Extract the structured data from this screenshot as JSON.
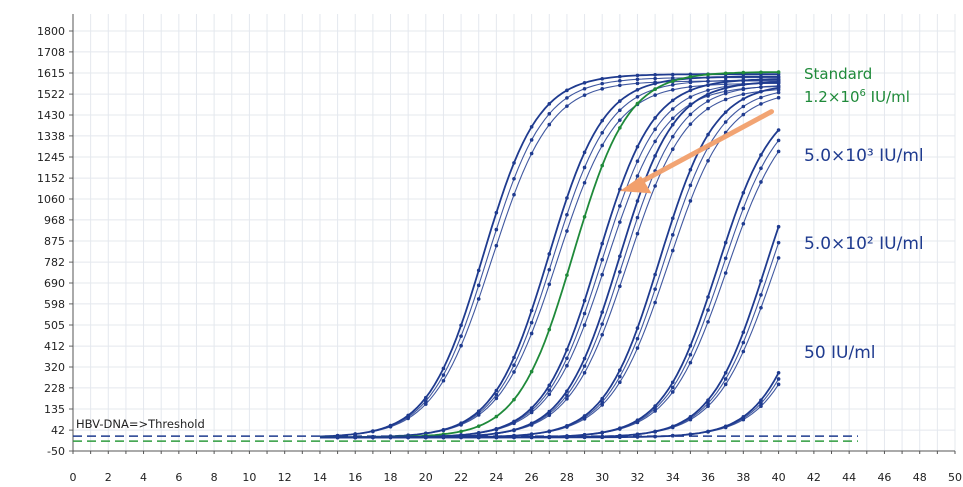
{
  "chart_data": {
    "type": "line",
    "title": "",
    "xlabel": "",
    "ylabel": "",
    "xlim": [
      0,
      50
    ],
    "ylim": [
      -50,
      1850
    ],
    "x_ticks": [
      "0",
      "2",
      "4",
      "6",
      "8",
      "10",
      "12",
      "14",
      "16",
      "18",
      "20",
      "22",
      "24",
      "26",
      "28",
      "30",
      "32",
      "34",
      "36",
      "38",
      "40",
      "42",
      "44",
      "46",
      "48",
      "50"
    ],
    "y_ticks": [
      "1800",
      "1708",
      "1615",
      "1522",
      "1430",
      "1338",
      "1245",
      "1152",
      "1060",
      "968",
      "875",
      "782",
      "690",
      "598",
      "505",
      "412",
      "320",
      "228",
      "135",
      "42",
      "-50"
    ],
    "grid": true,
    "threshold": {
      "label": "HBV-DNA=>Threshold",
      "value": 42
    },
    "colors": {
      "standard": "#1f8a3a",
      "samples": "#1f3b8f",
      "arrow": "#f2a06c",
      "baseline_green": "#2e9c3e"
    },
    "annotations": [
      {
        "id": "standard",
        "line1": "Standard",
        "line2_base": "1.2×10",
        "line2_exp": "6",
        "line2_unit": " IU/ml",
        "color": "#1f8a3a"
      },
      {
        "id": "5e3",
        "text": "5.0×10³ IU/ml",
        "color": "#1f3b8f"
      },
      {
        "id": "5e2",
        "text": "5.0×10² IU/ml",
        "color": "#1f3b8f"
      },
      {
        "id": "50",
        "text": "50 IU/ml",
        "color": "#1f3b8f"
      }
    ],
    "series": [
      {
        "group": "sample",
        "midpoint": 23.5,
        "plateau": 1600,
        "replicates": 3
      },
      {
        "group": "sample",
        "midpoint": 27.2,
        "plateau": 1590,
        "replicates": 3
      },
      {
        "group": "standard",
        "midpoint": 28.6,
        "plateau": 1610,
        "replicates": 1
      },
      {
        "group": "sample",
        "midpoint": 30.0,
        "plateau": 1580,
        "replicates": 3
      },
      {
        "group": "sample",
        "midpoint": 31.2,
        "plateau": 1570,
        "replicates": 3
      },
      {
        "group": "sample",
        "midpoint": 33.5,
        "plateau": 1560,
        "replicates": 3
      },
      {
        "group": "sample",
        "midpoint": 36.8,
        "plateau": 1500,
        "replicates": 3
      },
      {
        "group": "sample",
        "midpoint": 39.5,
        "plateau": 1500,
        "replicates": 3
      },
      {
        "group": "sample",
        "midpoint": 42.5,
        "plateau": 1500,
        "replicates": 3
      }
    ]
  }
}
